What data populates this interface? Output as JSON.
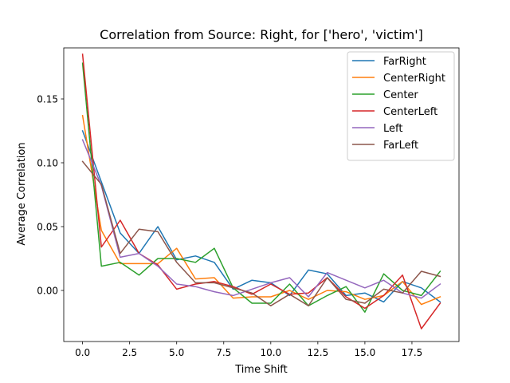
{
  "chart_data": {
    "type": "line",
    "title": "Correlation from Source: Right, for ['hero', 'victim']",
    "xlabel": "Time Shift",
    "ylabel": "Average Correlation",
    "xlim": [
      -1,
      20
    ],
    "ylim": [
      -0.04,
      0.19
    ],
    "xticks": [
      0.0,
      2.5,
      5.0,
      7.5,
      10.0,
      12.5,
      15.0,
      17.5
    ],
    "xtick_labels": [
      "0.0",
      "2.5",
      "5.0",
      "7.5",
      "10.0",
      "12.5",
      "15.0",
      "17.5"
    ],
    "yticks": [
      0.0,
      0.05,
      0.1,
      0.15
    ],
    "ytick_labels": [
      "0.00",
      "0.05",
      "0.10",
      "0.15"
    ],
    "grid": false,
    "legend_position": "top-right",
    "x": [
      0,
      1,
      2,
      3,
      4,
      5,
      6,
      7,
      8,
      9,
      10,
      11,
      12,
      13,
      14,
      15,
      16,
      17,
      18,
      19
    ],
    "series": [
      {
        "name": "FarRight",
        "color": "#1f77b4",
        "values": [
          0.125,
          0.085,
          0.045,
          0.029,
          0.05,
          0.024,
          0.027,
          0.022,
          0.001,
          0.008,
          0.006,
          -0.004,
          0.016,
          0.013,
          -0.004,
          -0.002,
          -0.009,
          0.007,
          0.002,
          -0.009
        ]
      },
      {
        "name": "CenterRight",
        "color": "#ff7f0e",
        "values": [
          0.137,
          0.047,
          0.021,
          0.021,
          0.021,
          0.033,
          0.009,
          0.01,
          -0.006,
          -0.005,
          -0.005,
          0.0,
          -0.007,
          0.0,
          -0.001,
          -0.007,
          -0.004,
          0.007,
          -0.011,
          -0.005
        ]
      },
      {
        "name": "Center",
        "color": "#2ca02c",
        "values": [
          0.178,
          0.019,
          0.022,
          0.012,
          0.025,
          0.025,
          0.022,
          0.033,
          0.002,
          -0.01,
          -0.01,
          0.005,
          -0.012,
          -0.004,
          0.003,
          -0.017,
          0.013,
          0.0,
          -0.004,
          0.015
        ]
      },
      {
        "name": "CenterLeft",
        "color": "#d62728",
        "values": [
          0.185,
          0.034,
          0.055,
          0.029,
          0.02,
          0.001,
          0.005,
          0.007,
          0.003,
          -0.003,
          0.005,
          -0.003,
          -0.002,
          0.01,
          -0.005,
          -0.014,
          -0.004,
          0.012,
          -0.03,
          -0.01
        ]
      },
      {
        "name": "Left",
        "color": "#9467bd",
        "values": [
          0.118,
          0.082,
          0.026,
          0.029,
          0.019,
          0.005,
          0.003,
          -0.001,
          -0.004,
          0.001,
          0.006,
          0.01,
          -0.005,
          0.014,
          0.008,
          0.002,
          0.008,
          -0.002,
          -0.006,
          0.005
        ]
      },
      {
        "name": "FarLeft",
        "color": "#8c564b",
        "values": [
          0.101,
          0.083,
          0.029,
          0.048,
          0.046,
          0.022,
          0.006,
          0.006,
          0.002,
          -0.002,
          -0.012,
          -0.003,
          -0.012,
          0.01,
          -0.007,
          -0.01,
          0.001,
          -0.002,
          0.015,
          0.011
        ]
      }
    ]
  }
}
